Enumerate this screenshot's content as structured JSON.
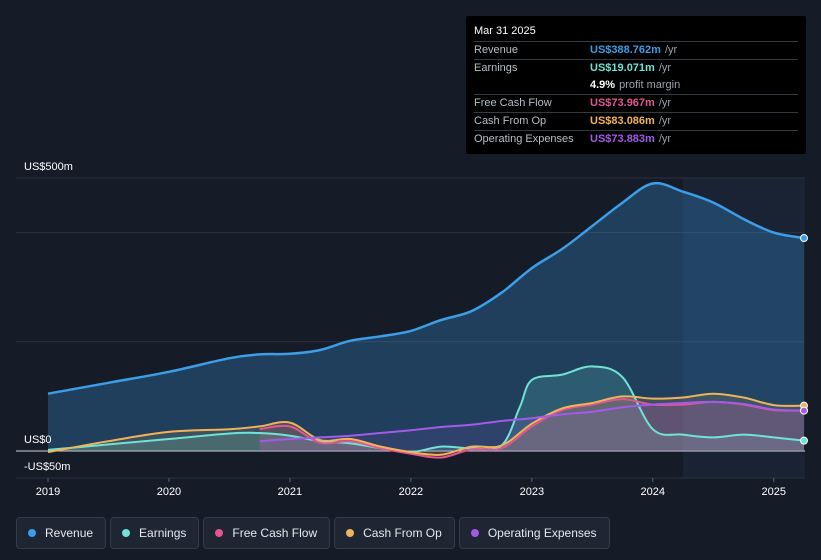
{
  "tooltip": {
    "date": "Mar 31 2025",
    "rows": [
      {
        "label": "Revenue",
        "value": "US$388.762m",
        "unit": "/yr",
        "color": "#3b9ee6"
      },
      {
        "label": "Earnings",
        "value": "US$19.071m",
        "unit": "/yr",
        "color": "#6fe3d6"
      },
      {
        "label": "",
        "value": "4.9%",
        "unit": "profit margin",
        "color": "#ffffff"
      },
      {
        "label": "Free Cash Flow",
        "value": "US$73.967m",
        "unit": "/yr",
        "color": "#e2568f"
      },
      {
        "label": "Cash From Op",
        "value": "US$83.086m",
        "unit": "/yr",
        "color": "#f0b35a"
      },
      {
        "label": "Operating Expenses",
        "value": "US$73.883m",
        "unit": "/yr",
        "color": "#a35ae8"
      }
    ]
  },
  "legend": [
    {
      "label": "Revenue",
      "color": "#3b9ee6"
    },
    {
      "label": "Earnings",
      "color": "#6fe3d6"
    },
    {
      "label": "Free Cash Flow",
      "color": "#e2568f"
    },
    {
      "label": "Cash From Op",
      "color": "#f0b35a"
    },
    {
      "label": "Operating Expenses",
      "color": "#a35ae8"
    }
  ],
  "chart_data": {
    "type": "area",
    "y_tick_labels": [
      "US$500m",
      "US$0",
      "-US$50m"
    ],
    "ylim": [
      -50,
      500
    ],
    "x_tick_labels": [
      "2019",
      "2020",
      "2021",
      "2022",
      "2023",
      "2024",
      "2025"
    ],
    "xlim": [
      2019.0,
      2025.25
    ],
    "forecast_start": 2024.25,
    "series": [
      {
        "name": "Revenue",
        "color": "#3b9ee6",
        "x": [
          2019.0,
          2019.5,
          2020.0,
          2020.5,
          2020.75,
          2021.0,
          2021.25,
          2021.5,
          2021.75,
          2022.0,
          2022.25,
          2022.5,
          2022.75,
          2023.0,
          2023.25,
          2023.5,
          2023.75,
          2024.0,
          2024.25,
          2024.5,
          2024.75,
          2025.0,
          2025.25
        ],
        "values": [
          105,
          125,
          145,
          170,
          177,
          178,
          185,
          202,
          210,
          220,
          240,
          256,
          290,
          335,
          370,
          412,
          455,
          490,
          475,
          455,
          425,
          400,
          390
        ]
      },
      {
        "name": "Earnings",
        "color": "#6fe3d6",
        "x": [
          2019.0,
          2019.5,
          2020.0,
          2020.5,
          2020.75,
          2021.0,
          2021.25,
          2021.5,
          2021.75,
          2022.0,
          2022.25,
          2022.5,
          2022.75,
          2022.9,
          2023.0,
          2023.25,
          2023.5,
          2023.75,
          2024.0,
          2024.25,
          2024.5,
          2024.75,
          2025.0,
          2025.25
        ],
        "values": [
          2,
          12,
          22,
          32,
          33,
          28,
          18,
          14,
          5,
          -2,
          8,
          5,
          10,
          80,
          130,
          140,
          155,
          135,
          40,
          30,
          25,
          30,
          25,
          19
        ]
      },
      {
        "name": "Free Cash Flow",
        "color": "#e2568f",
        "x": [
          2020.75,
          2021.0,
          2021.25,
          2021.5,
          2021.75,
          2022.0,
          2022.25,
          2022.5,
          2022.75,
          2023.0,
          2023.25,
          2023.5,
          2023.75,
          2024.0,
          2024.25,
          2024.5,
          2024.75,
          2025.0,
          2025.25
        ],
        "values": [
          40,
          45,
          15,
          18,
          5,
          -5,
          -12,
          3,
          5,
          45,
          75,
          85,
          95,
          85,
          85,
          90,
          85,
          75,
          74
        ]
      },
      {
        "name": "Cash From Op",
        "color": "#f0b35a",
        "x": [
          2019.0,
          2019.5,
          2020.0,
          2020.5,
          2020.75,
          2021.0,
          2021.25,
          2021.5,
          2021.75,
          2022.0,
          2022.25,
          2022.5,
          2022.75,
          2023.0,
          2023.25,
          2023.5,
          2023.75,
          2024.0,
          2024.25,
          2024.5,
          2024.75,
          2025.0,
          2025.25
        ],
        "values": [
          -2,
          18,
          35,
          40,
          45,
          52,
          20,
          22,
          8,
          -2,
          -7,
          8,
          10,
          50,
          78,
          88,
          100,
          96,
          98,
          105,
          98,
          84,
          83
        ]
      },
      {
        "name": "Operating Expenses",
        "color": "#a35ae8",
        "x": [
          2020.75,
          2021.0,
          2021.25,
          2021.5,
          2021.75,
          2022.0,
          2022.25,
          2022.5,
          2022.75,
          2023.0,
          2023.25,
          2023.5,
          2023.75,
          2024.0,
          2024.25,
          2024.5,
          2024.75,
          2025.0,
          2025.25
        ],
        "values": [
          18,
          22,
          25,
          28,
          33,
          38,
          44,
          48,
          55,
          60,
          67,
          72,
          80,
          85,
          88,
          90,
          86,
          76,
          74
        ]
      }
    ]
  }
}
